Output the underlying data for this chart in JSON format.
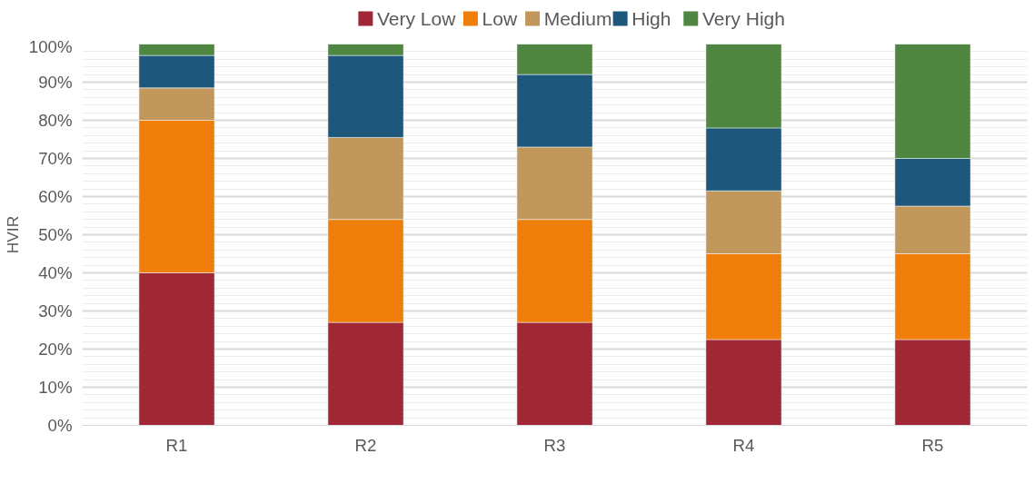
{
  "chart_data": {
    "type": "bar",
    "stacked": true,
    "ylabel": "HVIR",
    "categories": [
      "R1",
      "R2",
      "R3",
      "R4",
      "R5"
    ],
    "series": [
      {
        "name": "Very Low",
        "color": "#a02736",
        "values": [
          40,
          27,
          27,
          22.5,
          22.5
        ]
      },
      {
        "name": "Low",
        "color": "#ef7f0a",
        "values": [
          40,
          27,
          27,
          22.5,
          22.5
        ]
      },
      {
        "name": "Medium",
        "color": "#c1975b",
        "values": [
          8.5,
          21.5,
          19,
          16.5,
          12.5
        ]
      },
      {
        "name": "High",
        "color": "#1d587c",
        "values": [
          8.5,
          21.5,
          19,
          16.5,
          12.5
        ]
      },
      {
        "name": "Very High",
        "color": "#4f8641",
        "values": [
          3,
          3,
          8,
          22,
          30
        ]
      }
    ],
    "ylim": [
      0,
      100
    ],
    "yticks": [
      {
        "value": 0,
        "label": "0%"
      },
      {
        "value": 10,
        "label": "10%"
      },
      {
        "value": 20,
        "label": "20%"
      },
      {
        "value": 30,
        "label": "30%"
      },
      {
        "value": 40,
        "label": "40%"
      },
      {
        "value": 50,
        "label": "50%"
      },
      {
        "value": 60,
        "label": "60%"
      },
      {
        "value": 70,
        "label": "70%"
      },
      {
        "value": 80,
        "label": "80%"
      },
      {
        "value": 90,
        "label": "90%"
      },
      {
        "value": 100,
        "label": "100%"
      }
    ],
    "grid": "y",
    "legend": "top"
  }
}
